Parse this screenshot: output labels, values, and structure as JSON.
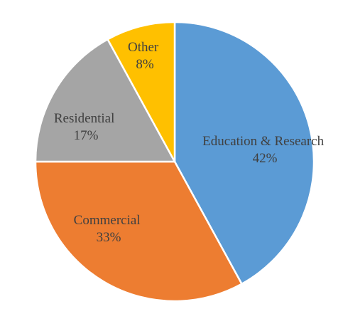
{
  "chart_data": {
    "type": "pie",
    "title": "",
    "categories": [
      "Education & Research",
      "Commercial",
      "Residential",
      "Other"
    ],
    "values": [
      42,
      33,
      17,
      8
    ],
    "unit": "%",
    "percent_labels": [
      "42%",
      "33%",
      "17%",
      "8%"
    ],
    "colors": [
      "#5B9BD5",
      "#ED7D31",
      "#A5A5A5",
      "#FFC000"
    ],
    "start": "top",
    "direction": "clockwise",
    "legend": "none"
  }
}
